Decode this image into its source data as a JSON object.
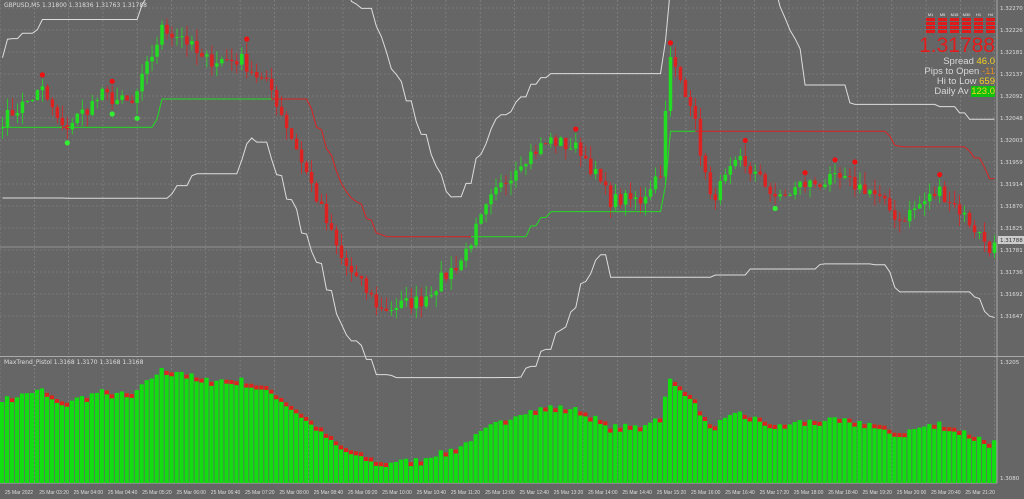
{
  "window": {
    "main_title": "GBPUSD,M5 1.31800 1.31836 1.31763 1.31788",
    "indicator_title": "MaxTrend_Pistol 1.3168 1.3170 1.3168 1.3168"
  },
  "info_panel": {
    "timeframes": [
      "M1",
      "M5",
      "M15",
      "M30",
      "H1",
      "H4"
    ],
    "price": "1.31788",
    "rows": [
      {
        "label": "Spread",
        "value": "46.0",
        "style": "v"
      },
      {
        "label": "Pips to Open",
        "value": "-11",
        "style": "o"
      },
      {
        "label": "Hi to Low",
        "value": "659",
        "style": "v"
      },
      {
        "label": "Daily Av",
        "value": "123.0",
        "style": "g"
      }
    ]
  },
  "price_axis": {
    "labels": [
      "1.32270",
      "1.32226",
      "1.32181",
      "1.32137",
      "1.32092",
      "1.32048",
      "1.32003",
      "1.31959",
      "1.31914",
      "1.31870",
      "1.31825",
      "1.31781",
      "1.31736",
      "1.31692",
      "1.31647"
    ],
    "current_price": "1.31788",
    "indicator_labels": [
      "1.3205",
      "1.3080"
    ]
  },
  "time_axis": [
    "25 Mar 2022",
    "25 Mar 03:20",
    "25 Mar 04:00",
    "25 Mar 04:40",
    "25 Mar 05:20",
    "25 Mar 06:00",
    "25 Mar 06:40",
    "25 Mar 07:20",
    "25 Mar 08:00",
    "25 Mar 08:40",
    "25 Mar 09:20",
    "25 Mar 10:00",
    "25 Mar 10:40",
    "25 Mar 11:20",
    "25 Mar 12:00",
    "25 Mar 12:40",
    "25 Mar 13:20",
    "25 Mar 14:00",
    "25 Mar 14:40",
    "25 Mar 15:20",
    "25 Mar 16:00",
    "25 Mar 16:40",
    "25 Mar 17:20",
    "25 Mar 18:00",
    "25 Mar 18:40",
    "25 Mar 19:20",
    "25 Mar 20:00",
    "25 Mar 20:40",
    "25 Mar 21:20"
  ],
  "colors": {
    "background": "#666666",
    "grid": "#8a8a8a",
    "bull": "#22dd22",
    "bear": "#dd2222",
    "band": "#dddddd",
    "text": "#dddddd"
  },
  "price_path": [
    [
      0,
      1.32044
    ],
    [
      8,
      1.32104
    ],
    [
      12,
      1.32024
    ],
    [
      20,
      1.32094
    ],
    [
      26,
      1.32074
    ],
    [
      32,
      1.32226
    ],
    [
      36,
      1.32215
    ],
    [
      40,
      1.32165
    ],
    [
      48,
      1.32165
    ],
    [
      54,
      1.32104
    ],
    [
      60,
      1.31963
    ],
    [
      68,
      1.31761
    ],
    [
      76,
      1.3166
    ],
    [
      84,
      1.3168
    ],
    [
      92,
      1.31761
    ],
    [
      98,
      1.31882
    ],
    [
      104,
      1.31963
    ],
    [
      110,
      1.32003
    ],
    [
      116,
      1.31983
    ],
    [
      122,
      1.31882
    ],
    [
      128,
      1.31882
    ],
    [
      132,
      1.31943
    ],
    [
      134,
      1.32165
    ],
    [
      138,
      1.32084
    ],
    [
      142,
      1.31882
    ],
    [
      148,
      1.31963
    ],
    [
      156,
      1.31882
    ],
    [
      160,
      1.31912
    ],
    [
      168,
      1.31923
    ],
    [
      174,
      1.31902
    ],
    [
      180,
      1.31842
    ],
    [
      188,
      1.31902
    ],
    [
      192,
      1.31862
    ],
    [
      198,
      1.31788
    ]
  ]
}
